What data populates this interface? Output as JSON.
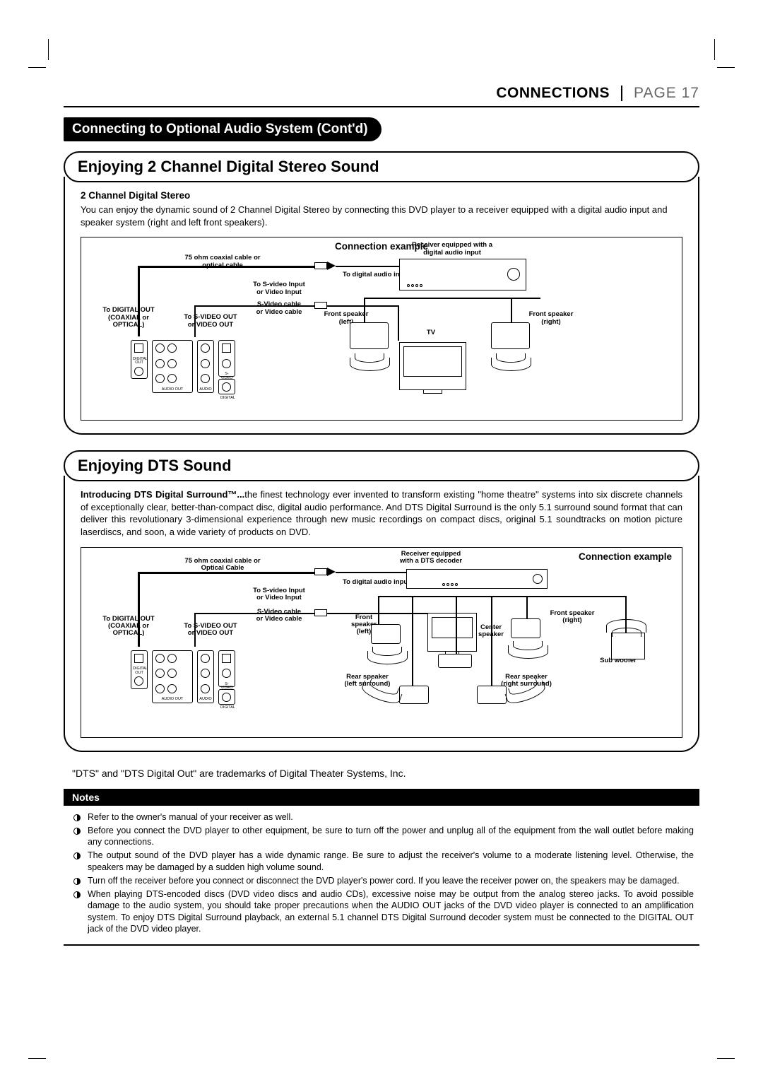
{
  "header": {
    "section": "CONNECTIONS",
    "page": "PAGE 17"
  },
  "banner": "Connecting to Optional Audio System (Cont'd)",
  "s1": {
    "title": "Enjoying 2 Channel Digital Stereo Sound",
    "subhead": "2 Channel Digital Stereo",
    "body": "You can enjoy the dynamic sound of 2 Channel Digital Stereo by connecting this DVD player to a receiver equipped with a digital audio input and speaker system (right and left front speakers).",
    "diagram": {
      "title": "Connection example",
      "coax": "75 ohm coaxial cable or\noptical cable",
      "svin": "To S-video Input\nor Video Input",
      "svcable": "S-Video cable\nor Video cable",
      "digout": "To DIGITAL OUT\n(COAXIAL or\nOPTICAL)",
      "svout": "To S-VIDEO OUT\nor VIDEO OUT",
      "dain": "To digital audio input",
      "rcv": "Receiver equipped with a\ndigital audio input",
      "fl": "Front speaker\n(left)",
      "fr": "Front speaker\n(right)",
      "tv": "TV"
    }
  },
  "s2": {
    "title": "Enjoying DTS Sound",
    "intro_lead": "Introducing DTS Digital Surround™...",
    "intro_body": "the finest technology ever invented to transform existing \"home theatre\" systems into six discrete channels of exceptionally clear, better-than-compact disc, digital audio performance. And DTS Digital Surround is the only 5.1 surround sound format that can deliver this revolutionary 3-dimensional experience through new music recordings on compact discs, original 5.1 soundtracks on motion picture laserdiscs, and soon, a wide variety of products on DVD.",
    "diagram": {
      "title": "Connection example",
      "coax": "75 ohm coaxial cable or\nOptical Cable",
      "svin": "To S-video Input\nor Video Input",
      "svcable": "S-Video cable\nor Video cable",
      "digout": "To DIGITAL OUT\n(COAXIAL or\nOPTICAL)",
      "svout": "To S-VIDEO OUT\nor VIDEO OUT",
      "dain": "To digital audio input",
      "rcv": "Receiver equipped\nwith a DTS decoder",
      "fl": "Front\nspeaker\n(left)",
      "fr": "Front speaker\n(right)",
      "center": "Center\nspeaker",
      "rl": "Rear speaker\n(left surround)",
      "rr": "Rear speaker\n(right surround)",
      "sub": "Sub woofer"
    }
  },
  "trademark": "\"DTS\" and \"DTS Digital Out\" are trademarks of Digital Theater Systems, Inc.",
  "notes": {
    "title": "Notes",
    "items": [
      "Refer to the owner's manual of your receiver as well.",
      "Before you connect the DVD player to other equipment, be sure to turn off the power and unplug all of the equipment from the wall outlet before making any connections.",
      "The output sound of the DVD player has a wide dynamic range. Be sure to adjust the receiver's  volume to a moderate listening level. Otherwise, the speakers may be damaged by a sudden high volume sound.",
      "Turn off the receiver before you connect or disconnect the DVD player's  power cord. If you leave the receiver power on, the speakers may be damaged.",
      "When playing DTS-encoded discs (DVD video discs and audio CDs), excessive noise may be output from the analog stereo jacks. To avoid possible damage to the audio system, you should take proper precautions when the AUDIO OUT jacks of the DVD video player is connected to an amplification system. To enjoy DTS Digital Surround playback, an external 5.1 channel DTS Digital Surround decoder system must be connected to the DIGITAL OUT jack of the DVD video player."
    ]
  },
  "colors": {
    "bg": "#ffffff",
    "fg": "#000000",
    "page_grey": "#6b6b6b"
  }
}
